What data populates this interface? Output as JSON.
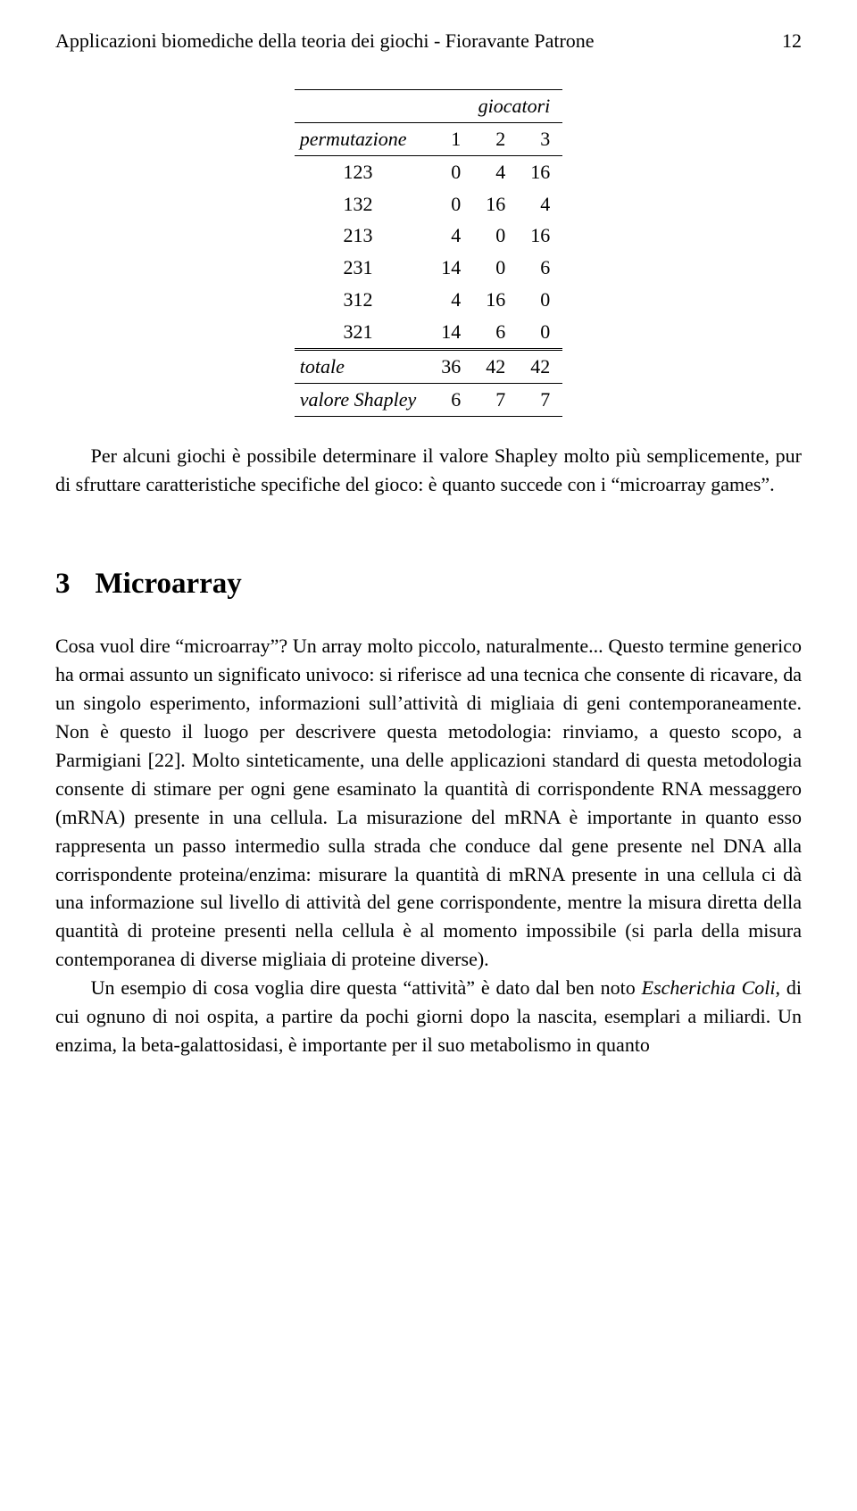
{
  "header": {
    "left": "Applicazioni biomediche della teoria dei giochi  -  Fioravante Patrone",
    "page": "12"
  },
  "table": {
    "superhead": "giocatori",
    "head_label": "permutazione",
    "head_cols": [
      "1",
      "2",
      "3"
    ],
    "rows": [
      {
        "label": "123",
        "cells": [
          "0",
          "4",
          "16"
        ]
      },
      {
        "label": "132",
        "cells": [
          "0",
          "16",
          "4"
        ]
      },
      {
        "label": "213",
        "cells": [
          "4",
          "0",
          "16"
        ]
      },
      {
        "label": "231",
        "cells": [
          "14",
          "0",
          "6"
        ]
      },
      {
        "label": "312",
        "cells": [
          "4",
          "16",
          "0"
        ]
      },
      {
        "label": "321",
        "cells": [
          "14",
          "6",
          "0"
        ]
      }
    ],
    "totale_label": "totale",
    "totale": [
      "36",
      "42",
      "42"
    ],
    "shapley_label": "valore Shapley",
    "shapley": [
      "6",
      "7",
      "7"
    ]
  },
  "para1": "Per alcuni giochi è possibile determinare il valore Shapley molto più semplicemente, pur di sfruttare caratteristiche specifiche del gioco: è quanto succede con i “microarray games”.",
  "section": {
    "num": "3",
    "title": "Microarray"
  },
  "para2a": "Cosa vuol dire “microarray”?  Un array molto piccolo, naturalmente... Questo termine generico ha ormai assunto un significato univoco: si riferisce ad una tecnica che consente di ricavare, da un singolo esperimento, informazioni sull’attività di migliaia di geni contemporaneamente. Non è questo il luogo per descrivere questa metodologia: rinviamo, a questo scopo, a Parmigiani [22]. Molto sinteticamente, una delle applicazioni standard di questa metodologia consente di stimare per ogni gene esaminato la quantità di corrispondente RNA messaggero (mRNA) presente in una cellula. La misurazione del mRNA è importante in quanto esso rappresenta un passo intermedio sulla strada che conduce dal gene presente nel DNA alla corrispondente proteina/enzima: misurare la quantità di mRNA presente in una cellula ci dà una informazione sul livello di attività del gene corrispondente, mentre la misura diretta della quantità di proteine presenti nella cellula è al momento impossibile (si parla della misura contemporanea di diverse migliaia di proteine diverse).",
  "para3_prefix": "Un esempio di cosa voglia dire questa “attività” è dato dal ben noto ",
  "para3_italic": "Escherichia Coli",
  "para3_suffix": ", di cui ognuno di noi ospita, a partire da pochi giorni dopo la nascita, esemplari a miliardi.  Un enzima, la beta-galattosidasi, è importante per il suo metabolismo in quanto"
}
